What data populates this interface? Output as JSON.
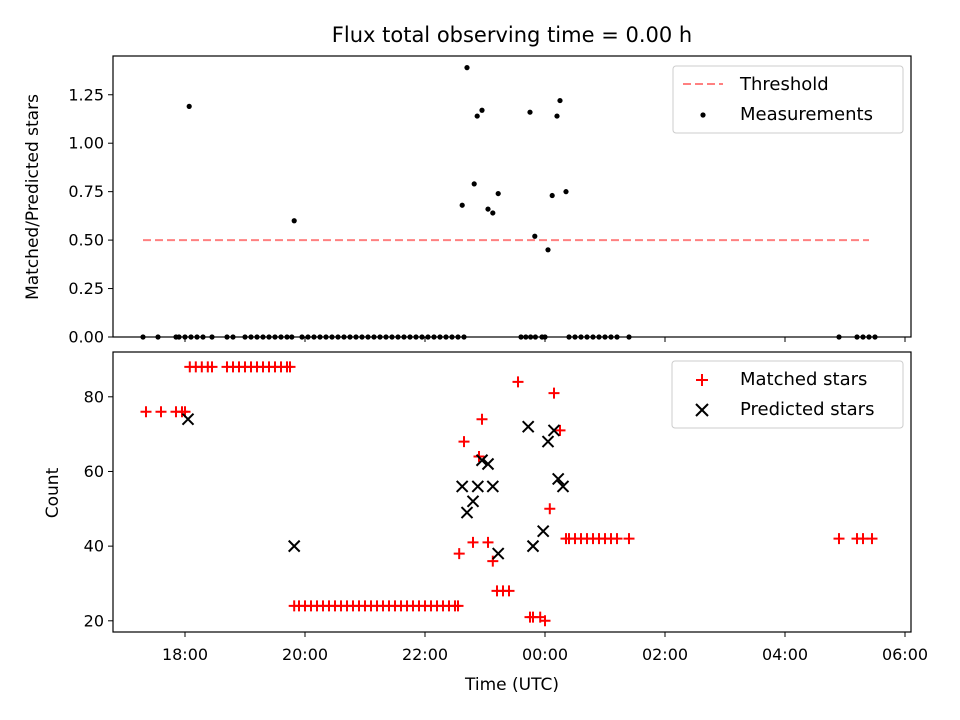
{
  "chart_data": [
    {
      "id": "ratio",
      "type": "scatter",
      "title": "Flux total observing time = 0.00 h",
      "xlabel": "",
      "ylabel": "Matched/Predicted stars",
      "xlim": [
        16.8,
        30.1
      ],
      "ylim": [
        0,
        1.45
      ],
      "yticks": [
        "0.00",
        "0.25",
        "0.50",
        "0.75",
        "1.00",
        "1.25"
      ],
      "ytick_values": [
        0,
        0.25,
        0.5,
        0.75,
        1.0,
        1.25
      ],
      "legend": {
        "position": "top-right",
        "threshold_label": "Threshold",
        "measurements_label": "Measurements"
      },
      "threshold": {
        "value": 0.5,
        "x_range": [
          17.3,
          29.4
        ],
        "color": "#ff8080"
      },
      "series": [
        {
          "name": "Measurements",
          "marker": "dot",
          "color": "#000000",
          "x": [
            18.07,
            19.82,
            22.62,
            22.7,
            22.82,
            22.87,
            22.95,
            23.05,
            23.13,
            23.22,
            23.75,
            23.83,
            24.05,
            24.12,
            24.2,
            24.25,
            24.35,
            17.3,
            17.55,
            17.85,
            17.9,
            18.0,
            18.1,
            18.2,
            18.3,
            18.45,
            18.7,
            18.8,
            19.0,
            19.1,
            19.2,
            19.3,
            19.4,
            19.5,
            19.6,
            19.7,
            19.78,
            19.95,
            20.05,
            20.15,
            20.25,
            20.35,
            20.45,
            20.55,
            20.65,
            20.75,
            20.85,
            20.95,
            21.05,
            21.15,
            21.25,
            21.35,
            21.45,
            21.55,
            21.65,
            21.75,
            21.85,
            21.95,
            22.05,
            22.15,
            22.25,
            22.35,
            22.45,
            22.55,
            22.65,
            23.6,
            23.68,
            23.76,
            23.84,
            23.95,
            24.0,
            24.4,
            24.5,
            24.6,
            24.7,
            24.8,
            24.9,
            25.0,
            25.1,
            25.2,
            25.4,
            28.9,
            29.2,
            29.3,
            29.4,
            29.5
          ],
          "y": [
            1.19,
            0.6,
            0.68,
            1.39,
            0.79,
            1.14,
            1.17,
            0.66,
            0.64,
            0.74,
            1.16,
            0.52,
            0.45,
            0.73,
            1.14,
            1.22,
            0.75,
            0,
            0,
            0,
            0,
            0,
            0,
            0,
            0,
            0,
            0,
            0,
            0,
            0,
            0,
            0,
            0,
            0,
            0,
            0,
            0,
            0,
            0,
            0,
            0,
            0,
            0,
            0,
            0,
            0,
            0,
            0,
            0,
            0,
            0,
            0,
            0,
            0,
            0,
            0,
            0,
            0,
            0,
            0,
            0,
            0,
            0,
            0,
            0,
            0,
            0,
            0,
            0,
            0,
            0,
            0,
            0,
            0,
            0,
            0,
            0,
            0,
            0,
            0,
            0,
            0,
            0,
            0,
            0,
            0
          ]
        }
      ]
    },
    {
      "id": "counts",
      "type": "scatter",
      "title": "",
      "xlabel": "Time (UTC)",
      "ylabel": "Count",
      "xlim": [
        16.8,
        30.1
      ],
      "ylim": [
        17,
        92
      ],
      "yticks": [
        "20",
        "40",
        "60",
        "80"
      ],
      "ytick_values": [
        20,
        40,
        60,
        80
      ],
      "xticks": [
        "18:00",
        "20:00",
        "22:00",
        "00:00",
        "02:00",
        "04:00",
        "06:00"
      ],
      "xtick_values": [
        18,
        20,
        22,
        24,
        26,
        28,
        30
      ],
      "legend": {
        "position": "top-right",
        "matched_label": "Matched stars",
        "predicted_label": "Predicted stars"
      },
      "series": [
        {
          "name": "Matched stars",
          "marker": "plus",
          "color": "#ff0000",
          "x": [
            17.35,
            17.6,
            17.85,
            17.95,
            18.0,
            18.08,
            18.18,
            18.28,
            18.38,
            18.45,
            18.7,
            18.8,
            18.9,
            19.0,
            19.1,
            19.2,
            19.3,
            19.4,
            19.5,
            19.6,
            19.7,
            19.75,
            19.82,
            19.9,
            20.0,
            20.1,
            20.2,
            20.3,
            20.4,
            20.5,
            20.6,
            20.7,
            20.8,
            20.9,
            21.0,
            21.1,
            21.2,
            21.3,
            21.4,
            21.5,
            21.6,
            21.7,
            21.8,
            21.9,
            22.0,
            22.1,
            22.2,
            22.3,
            22.4,
            22.5,
            22.55,
            22.57,
            22.65,
            22.8,
            22.9,
            22.95,
            23.05,
            23.13,
            23.2,
            23.3,
            23.4,
            23.55,
            23.75,
            23.8,
            23.92,
            24.0,
            24.08,
            24.15,
            24.25,
            24.35,
            24.4,
            24.5,
            24.6,
            24.7,
            24.8,
            24.9,
            25.0,
            25.1,
            25.2,
            25.4,
            28.9,
            29.2,
            29.3,
            29.45
          ],
          "y": [
            76,
            76,
            76,
            76,
            76,
            88,
            88,
            88,
            88,
            88,
            88,
            88,
            88,
            88,
            88,
            88,
            88,
            88,
            88,
            88,
            88,
            88,
            24,
            24,
            24,
            24,
            24,
            24,
            24,
            24,
            24,
            24,
            24,
            24,
            24,
            24,
            24,
            24,
            24,
            24,
            24,
            24,
            24,
            24,
            24,
            24,
            24,
            24,
            24,
            24,
            24,
            38,
            68,
            41,
            64,
            74,
            41,
            36,
            28,
            28,
            28,
            84,
            21,
            21,
            21,
            20,
            50,
            81,
            71,
            42,
            42,
            42,
            42,
            42,
            42,
            42,
            42,
            42,
            42,
            42,
            42,
            42,
            42,
            42
          ]
        },
        {
          "name": "Predicted stars",
          "marker": "x",
          "color": "#000000",
          "x": [
            18.05,
            19.82,
            22.62,
            22.7,
            22.8,
            22.88,
            22.95,
            23.05,
            23.13,
            23.22,
            23.72,
            23.8,
            23.97,
            24.05,
            24.15,
            24.22,
            24.3
          ],
          "y": [
            74,
            40,
            56,
            49,
            52,
            56,
            63,
            62,
            56,
            38,
            72,
            40,
            44,
            68,
            71,
            58,
            56
          ]
        }
      ]
    }
  ]
}
